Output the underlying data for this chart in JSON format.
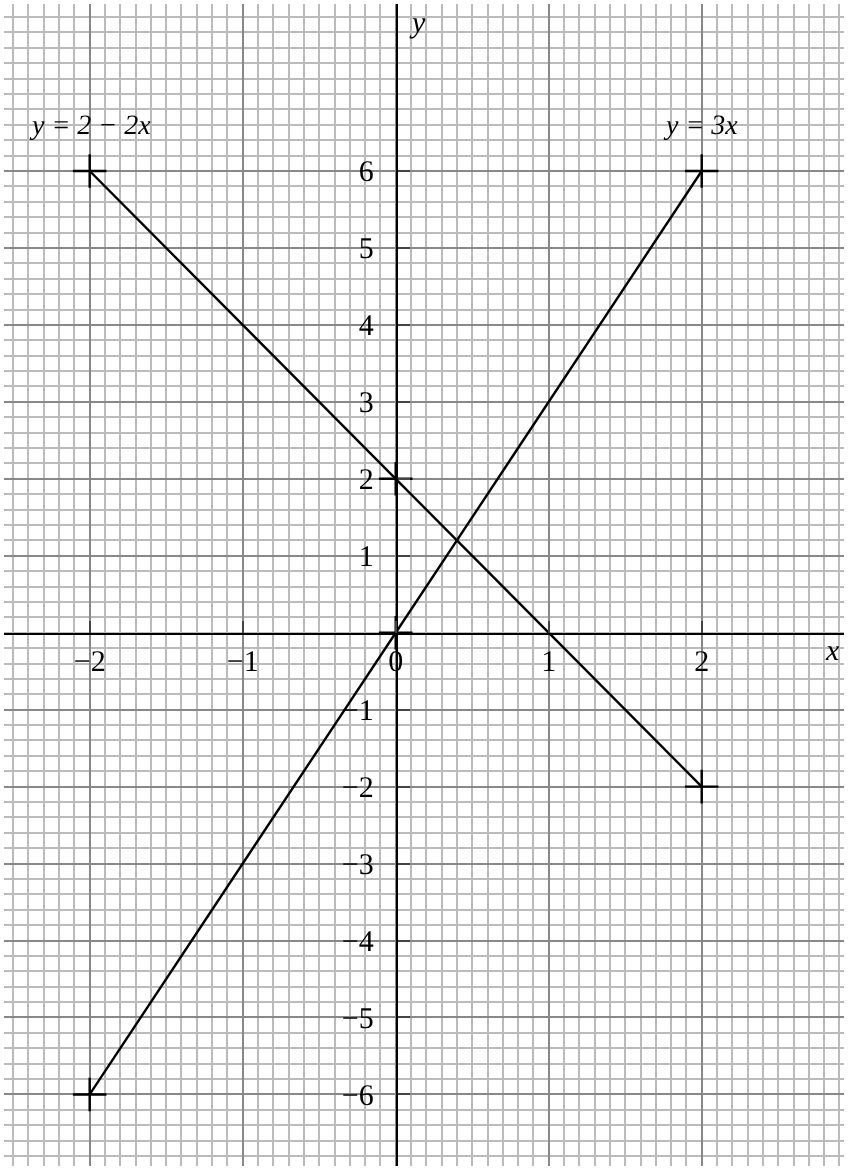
{
  "chart_data": {
    "type": "line",
    "xlabel": "x",
    "ylabel": "y",
    "series": [
      {
        "name": "y = 2 − 2x",
        "color": "#000000",
        "x": [
          -2,
          0,
          2
        ],
        "values": [
          6,
          2,
          -2
        ]
      },
      {
        "name": "y = 3x",
        "color": "#000000",
        "x": [
          -2,
          0,
          2
        ],
        "values": [
          -6,
          0,
          6
        ]
      }
    ],
    "xlim": [
      -2.56,
      2.93
    ],
    "ylim": [
      -6.93,
      8.17
    ],
    "xticks": [
      -2,
      -1,
      0,
      1,
      2
    ],
    "yticks": [
      -6,
      -5,
      -4,
      -3,
      -2,
      -1,
      1,
      2,
      3,
      4,
      5,
      6
    ],
    "grid": true,
    "legend": false,
    "marker": "cross",
    "line_style": "solid"
  }
}
